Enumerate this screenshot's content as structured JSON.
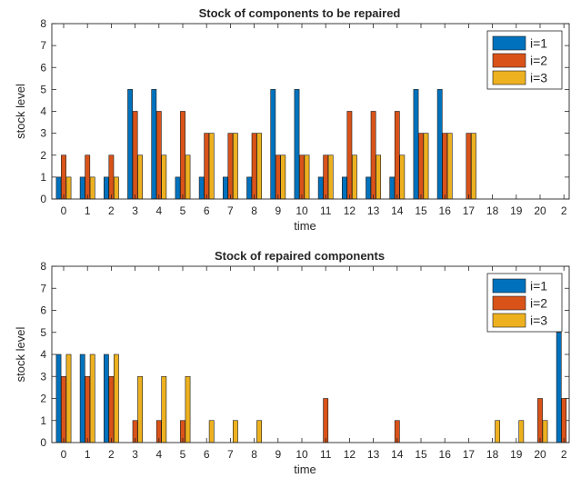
{
  "chart_data": [
    {
      "type": "bar",
      "title": "Stock of components to be repaired",
      "xlabel": "time",
      "ylabel": "stock level",
      "ylim": [
        0,
        8
      ],
      "yticks": [
        "0",
        "1",
        "2",
        "3",
        "4",
        "5",
        "6",
        "7",
        "8"
      ],
      "categories": [
        "0",
        "1",
        "2",
        "3",
        "4",
        "5",
        "6",
        "7",
        "8",
        "9",
        "10",
        "11",
        "12",
        "13",
        "14",
        "15",
        "16",
        "17",
        "18",
        "19",
        "20",
        "2"
      ],
      "legend_position": "top-right",
      "series": [
        {
          "name": "i=1",
          "color": "#0072BD",
          "values": [
            1,
            1,
            1,
            5,
            5,
            1,
            1,
            1,
            1,
            5,
            5,
            1,
            1,
            1,
            1,
            5,
            5,
            0,
            0,
            0,
            0,
            0
          ]
        },
        {
          "name": "i=2",
          "color": "#D95319",
          "values": [
            2,
            2,
            2,
            4,
            4,
            4,
            3,
            3,
            3,
            2,
            2,
            2,
            4,
            4,
            4,
            3,
            3,
            3,
            0,
            0,
            0,
            0
          ]
        },
        {
          "name": "i=3",
          "color": "#EDB120",
          "values": [
            1,
            1,
            1,
            2,
            2,
            2,
            3,
            3,
            3,
            2,
            2,
            2,
            2,
            2,
            2,
            3,
            3,
            3,
            0,
            0,
            0,
            0
          ]
        }
      ]
    },
    {
      "type": "bar",
      "title": "Stock of repaired components",
      "xlabel": "time",
      "ylabel": "stock level",
      "ylim": [
        0,
        8
      ],
      "yticks": [
        "0",
        "1",
        "2",
        "3",
        "4",
        "5",
        "6",
        "7",
        "8"
      ],
      "categories": [
        "0",
        "1",
        "2",
        "3",
        "4",
        "5",
        "6",
        "7",
        "8",
        "9",
        "10",
        "11",
        "12",
        "13",
        "14",
        "15",
        "16",
        "17",
        "18",
        "19",
        "20",
        "2"
      ],
      "legend_position": "top-right",
      "series": [
        {
          "name": "i=1",
          "color": "#0072BD",
          "values": [
            4,
            4,
            4,
            0,
            0,
            0,
            0,
            0,
            0,
            0,
            0,
            0,
            0,
            0,
            0,
            0,
            0,
            0,
            0,
            0,
            0,
            5
          ]
        },
        {
          "name": "i=2",
          "color": "#D95319",
          "values": [
            3,
            3,
            3,
            1,
            1,
            1,
            0,
            0,
            0,
            0,
            0,
            2,
            0,
            0,
            1,
            0,
            0,
            0,
            0,
            0,
            2,
            2
          ]
        },
        {
          "name": "i=3",
          "color": "#EDB120",
          "values": [
            4,
            4,
            4,
            3,
            3,
            3,
            1,
            1,
            1,
            0,
            0,
            0,
            0,
            0,
            0,
            0,
            0,
            0,
            1,
            1,
            1,
            0
          ]
        }
      ]
    }
  ]
}
